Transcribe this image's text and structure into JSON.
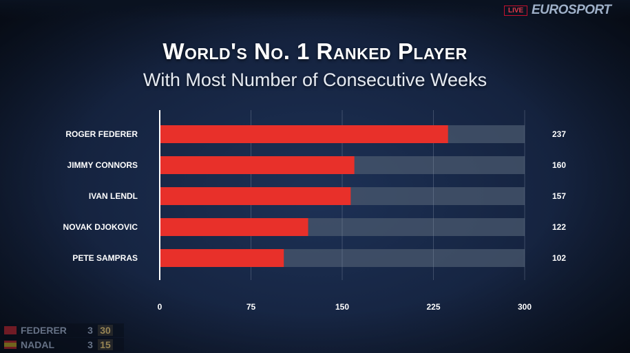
{
  "broadcast": {
    "live_label": "LIVE",
    "broadcaster": "EUROSPORT"
  },
  "scorebug": [
    {
      "player": "FEDERER",
      "sets": "3",
      "games": "30"
    },
    {
      "player": "NADAL",
      "sets": "3",
      "games": "15"
    }
  ],
  "chart_data": {
    "type": "bar",
    "orientation": "horizontal",
    "title": "World's No. 1 Ranked Player",
    "subtitle": "With Most Number of Consecutive Weeks",
    "categories": [
      "ROGER FEDERER",
      "JIMMY CONNORS",
      "IVAN LENDL",
      "NOVAK DJOKOVIC",
      "PETE SAMPRAS"
    ],
    "values": [
      237,
      160,
      157,
      122,
      102
    ],
    "xlim": [
      0,
      300
    ],
    "xticks": [
      0,
      75,
      150,
      225,
      300
    ],
    "grid": true,
    "colors": {
      "bar": "#e8302a",
      "track": "#4a586e",
      "grid": "#8b97ad",
      "axis": "#ffffff"
    }
  }
}
